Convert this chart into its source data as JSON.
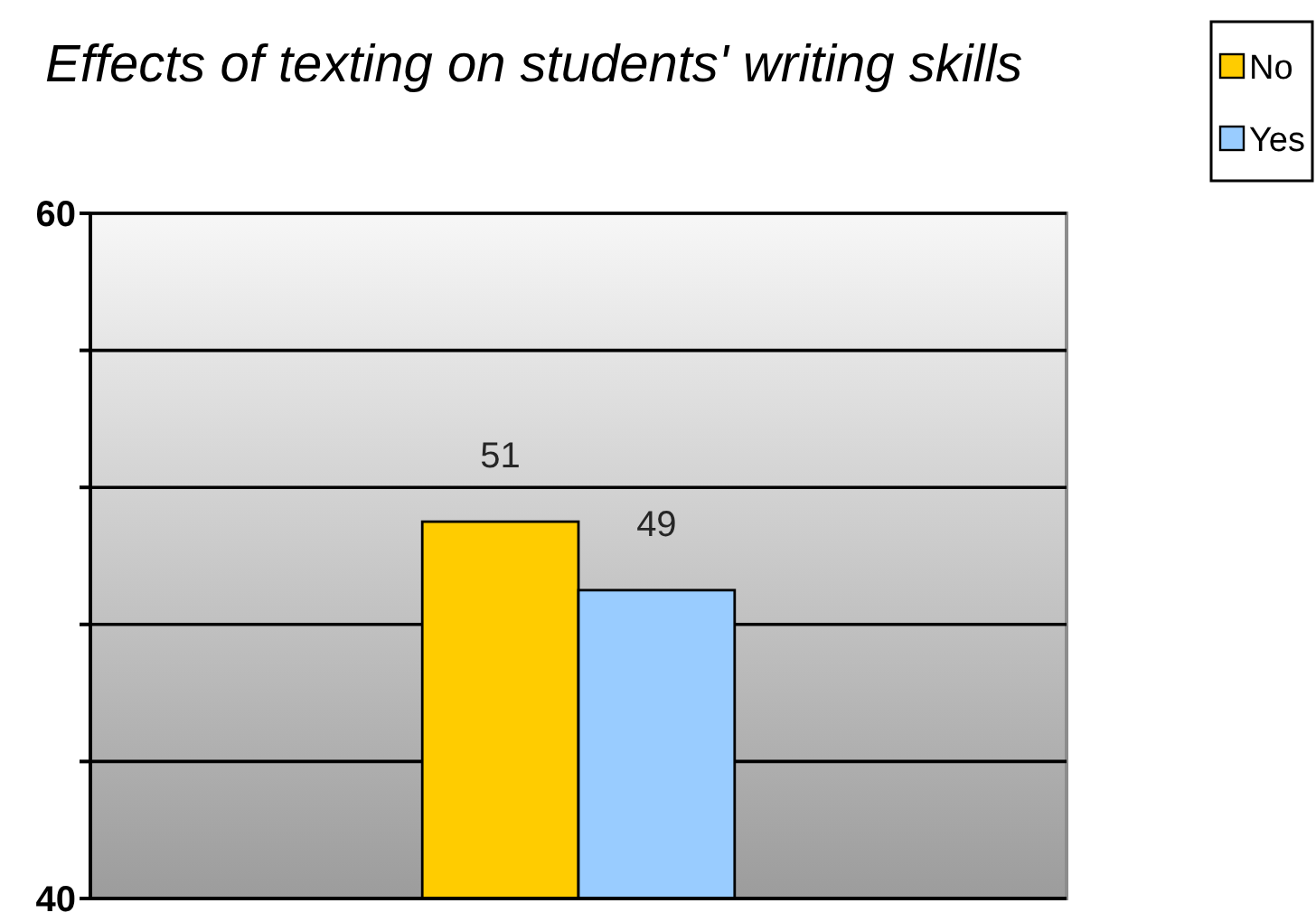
{
  "chart_data": {
    "type": "bar",
    "title": "Effects of texting on students' writing skills",
    "categories": [
      null
    ],
    "series": [
      {
        "name": "No",
        "color": "#ffcc00",
        "values": [
          51
        ]
      },
      {
        "name": "Yes",
        "color": "#99ccff",
        "values": [
          49
        ]
      }
    ],
    "ylim": [
      40,
      60
    ],
    "yticks": [
      40,
      {
        "value": 44,
        "label": null
      },
      {
        "value": 48,
        "label": null
      },
      {
        "value": 52,
        "label": null
      },
      {
        "value": 56,
        "label": null
      },
      60
    ],
    "grid": "y",
    "legend": "top right",
    "data_labels": true
  }
}
